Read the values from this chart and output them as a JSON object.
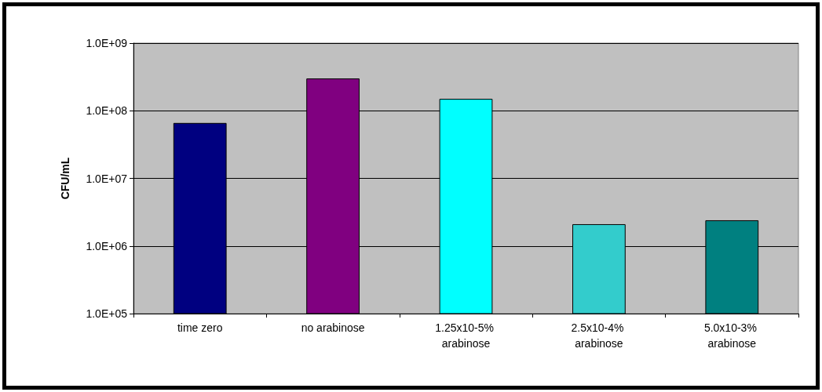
{
  "chart_data": {
    "type": "bar",
    "ylabel": "CFU/mL",
    "categories": [
      "time zero",
      "no arabinose",
      "1.25x10-5% arabinose",
      "2.5x10-4% arabinose",
      "5.0x10-3% arabinose"
    ],
    "values": [
      66000000,
      300000000,
      150000000,
      2100000,
      2400000
    ],
    "colors": [
      "#000080",
      "#800080",
      "#00ffff",
      "#33cccc",
      "#008080"
    ],
    "log": "y",
    "ylim": [
      100000,
      1000000000
    ],
    "yticks": [
      {
        "value": 100000,
        "label": "1.0E+05"
      },
      {
        "value": 1000000,
        "label": "1.0E+06"
      },
      {
        "value": 10000000,
        "label": "1.0E+07"
      },
      {
        "value": 100000000,
        "label": "1.0E+08"
      },
      {
        "value": 1000000000,
        "label": "1.0E+09"
      }
    ],
    "grid": "y"
  }
}
